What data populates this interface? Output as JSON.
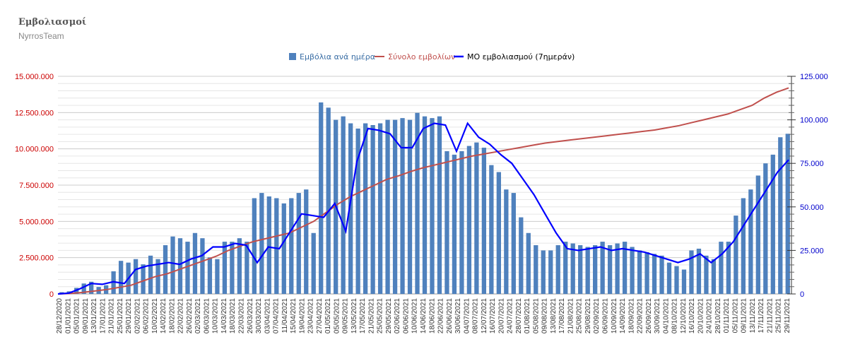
{
  "header": {
    "title": "Εμβολιασμοί",
    "subtitle": "NyrrosTeam"
  },
  "chart_data": {
    "type": "bar",
    "legend_position": "top-center",
    "grid": true,
    "colors": {
      "bars": "#4f81bd",
      "cumulative": "#c0504d",
      "avg": "#0000ff",
      "left_axis": "#cc0000",
      "right_axis": "#0000cc"
    },
    "left_axis": {
      "ylim": [
        0,
        15000000
      ],
      "ticks": [
        "0",
        "2.500.000",
        "5.000.000",
        "7.500.000",
        "10.000.000",
        "12.500.000",
        "15.000.000"
      ]
    },
    "right_axis": {
      "ylim": [
        0,
        125000
      ],
      "ticks": [
        "0",
        "25.000",
        "50.000",
        "75.000",
        "100.000",
        "125.000"
      ]
    },
    "x_labels": [
      "28/12/2020",
      "01/01/2021",
      "05/01/2021",
      "09/01/2021",
      "13/01/2021",
      "17/01/2021",
      "21/01/2021",
      "25/01/2021",
      "29/01/2021",
      "02/02/2021",
      "06/02/2021",
      "10/02/2021",
      "14/02/2021",
      "18/02/2021",
      "22/02/2021",
      "26/02/2021",
      "02/03/2021",
      "06/03/2021",
      "10/03/2021",
      "14/03/2021",
      "18/03/2021",
      "22/03/2021",
      "26/03/2021",
      "30/03/2021",
      "03/04/2021",
      "07/04/2021",
      "11/04/2021",
      "15/04/2021",
      "19/04/2021",
      "23/04/2021",
      "27/04/2021",
      "01/05/2021",
      "05/05/2021",
      "09/05/2021",
      "13/05/2021",
      "17/05/2021",
      "21/05/2021",
      "25/05/2021",
      "29/05/2021",
      "02/06/2021",
      "06/06/2021",
      "10/06/2021",
      "14/06/2021",
      "18/06/2021",
      "22/06/2021",
      "26/06/2021",
      "30/06/2021",
      "04/07/2021",
      "08/07/2021",
      "12/07/2021",
      "16/07/2021",
      "20/07/2021",
      "24/07/2021",
      "28/07/2021",
      "01/08/2021",
      "05/08/2021",
      "09/08/2021",
      "13/08/2021",
      "17/08/2021",
      "21/08/2021",
      "25/08/2021",
      "29/08/2021",
      "02/09/2021",
      "06/09/2021",
      "10/09/2021",
      "14/09/2021",
      "18/09/2021",
      "22/09/2021",
      "26/09/2021",
      "30/09/2021",
      "04/10/2021",
      "08/10/2021",
      "12/10/2021",
      "16/10/2021",
      "20/10/2021",
      "24/10/2021",
      "28/10/2021",
      "01/11/2021",
      "05/11/2021",
      "09/11/2021",
      "13/11/2021",
      "17/11/2021",
      "21/11/2021",
      "25/11/2021",
      "29/11/2021"
    ],
    "series": [
      {
        "name": "Εμβόλια ανά ημέρα",
        "type": "bar",
        "axis": "right",
        "values": [
          1000,
          1500,
          3500,
          6000,
          7000,
          4000,
          5000,
          13000,
          19000,
          18000,
          20000,
          17000,
          22000,
          20000,
          28000,
          33000,
          32000,
          30000,
          35000,
          32000,
          21000,
          20000,
          30000,
          30000,
          32000,
          30000,
          55000,
          58000,
          56000,
          55000,
          52000,
          55000,
          58000,
          60000,
          35000,
          110000,
          107000,
          100000,
          102000,
          98000,
          95000,
          98000,
          97000,
          98000,
          100000,
          100000,
          101000,
          100000,
          104000,
          102000,
          101000,
          102000,
          82000,
          80000,
          82000,
          85000,
          87000,
          84000,
          74000,
          70000,
          60000,
          58000,
          44000,
          35000,
          28000,
          25000,
          25000,
          28000,
          30000,
          29000,
          28000,
          27000,
          28000,
          30000,
          28000,
          29000,
          30000,
          27000,
          25000,
          24000,
          23000,
          22000,
          18000,
          16000,
          14000,
          25000,
          26000,
          22000,
          20000,
          30000,
          30000,
          45000,
          55000,
          60000,
          68000,
          75000,
          80000,
          90000,
          92000
        ]
      },
      {
        "name": "Σύνολο εμβολίων",
        "type": "line",
        "axis": "left",
        "values": [
          0,
          30000,
          100000,
          200000,
          300000,
          450000,
          600000,
          900000,
          1200000,
          1400000,
          1700000,
          2000000,
          2300000,
          2600000,
          3000000,
          3300000,
          3600000,
          3800000,
          4000000,
          4200000,
          4600000,
          5000000,
          5600000,
          6200000,
          6700000,
          7100000,
          7500000,
          7900000,
          8150000,
          8450000,
          8700000,
          8900000,
          9100000,
          9300000,
          9500000,
          9650000,
          9800000,
          9950000,
          10100000,
          10250000,
          10400000,
          10500000,
          10600000,
          10700000,
          10800000,
          10900000,
          11000000,
          11100000,
          11200000,
          11300000,
          11450000,
          11600000,
          11800000,
          12000000,
          12200000,
          12400000,
          12700000,
          13000000,
          13500000,
          13900000,
          14200000
        ]
      },
      {
        "name": "ΜΟ εμβολιασμού (7ημεράν)",
        "type": "line",
        "axis": "right",
        "values": [
          0,
          500,
          3000,
          6000,
          5500,
          7000,
          6000,
          14000,
          16000,
          17000,
          18000,
          17000,
          20000,
          22000,
          27000,
          27000,
          29000,
          28000,
          18000,
          27000,
          26000,
          36000,
          46000,
          45000,
          44000,
          52000,
          36000,
          76000,
          95000,
          94000,
          92000,
          84000,
          84000,
          95000,
          98000,
          97000,
          82000,
          98000,
          90000,
          86000,
          80000,
          75000,
          66000,
          57000,
          46000,
          35000,
          26000,
          25000,
          26000,
          27000,
          25000,
          26000,
          25000,
          24000,
          22000,
          20000,
          18000,
          20000,
          23000,
          18000,
          23000,
          30000,
          40000,
          50000,
          60000,
          70000,
          77000
        ]
      }
    ]
  }
}
